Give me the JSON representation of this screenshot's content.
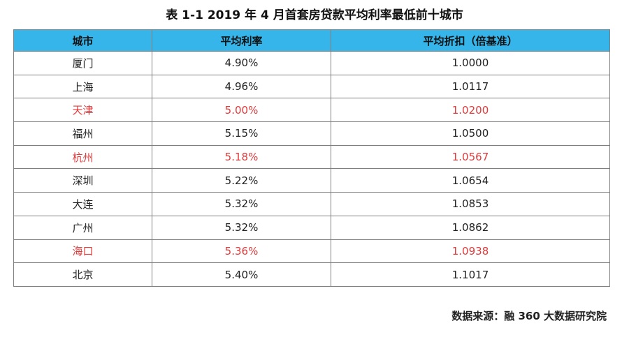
{
  "title": "表 1-1  2019 年 4 月首套房贷款平均利率最低前十城市",
  "table": {
    "headers": [
      "城市",
      "平均利率",
      "平均折扣（倍基准）"
    ],
    "rows": [
      {
        "city": "厦门",
        "rate": "4.90%",
        "discount": "1.0000",
        "highlight": false
      },
      {
        "city": "上海",
        "rate": "4.96%",
        "discount": "1.0117",
        "highlight": false
      },
      {
        "city": "天津",
        "rate": "5.00%",
        "discount": "1.0200",
        "highlight": true
      },
      {
        "city": "福州",
        "rate": "5.15%",
        "discount": "1.0500",
        "highlight": false
      },
      {
        "city": "杭州",
        "rate": "5.18%",
        "discount": "1.0567",
        "highlight": true
      },
      {
        "city": "深圳",
        "rate": "5.22%",
        "discount": "1.0654",
        "highlight": false
      },
      {
        "city": "大连",
        "rate": "5.32%",
        "discount": "1.0853",
        "highlight": false
      },
      {
        "city": "广州",
        "rate": "5.32%",
        "discount": "1.0862",
        "highlight": false
      },
      {
        "city": "海口",
        "rate": "5.36%",
        "discount": "1.0938",
        "highlight": true
      },
      {
        "city": "北京",
        "rate": "5.40%",
        "discount": "1.1017",
        "highlight": false
      }
    ]
  },
  "source": "数据来源：融 360 大数据研究院",
  "colors": {
    "header_bg": "#35b5ea",
    "highlight_text": "#e03a3a"
  }
}
